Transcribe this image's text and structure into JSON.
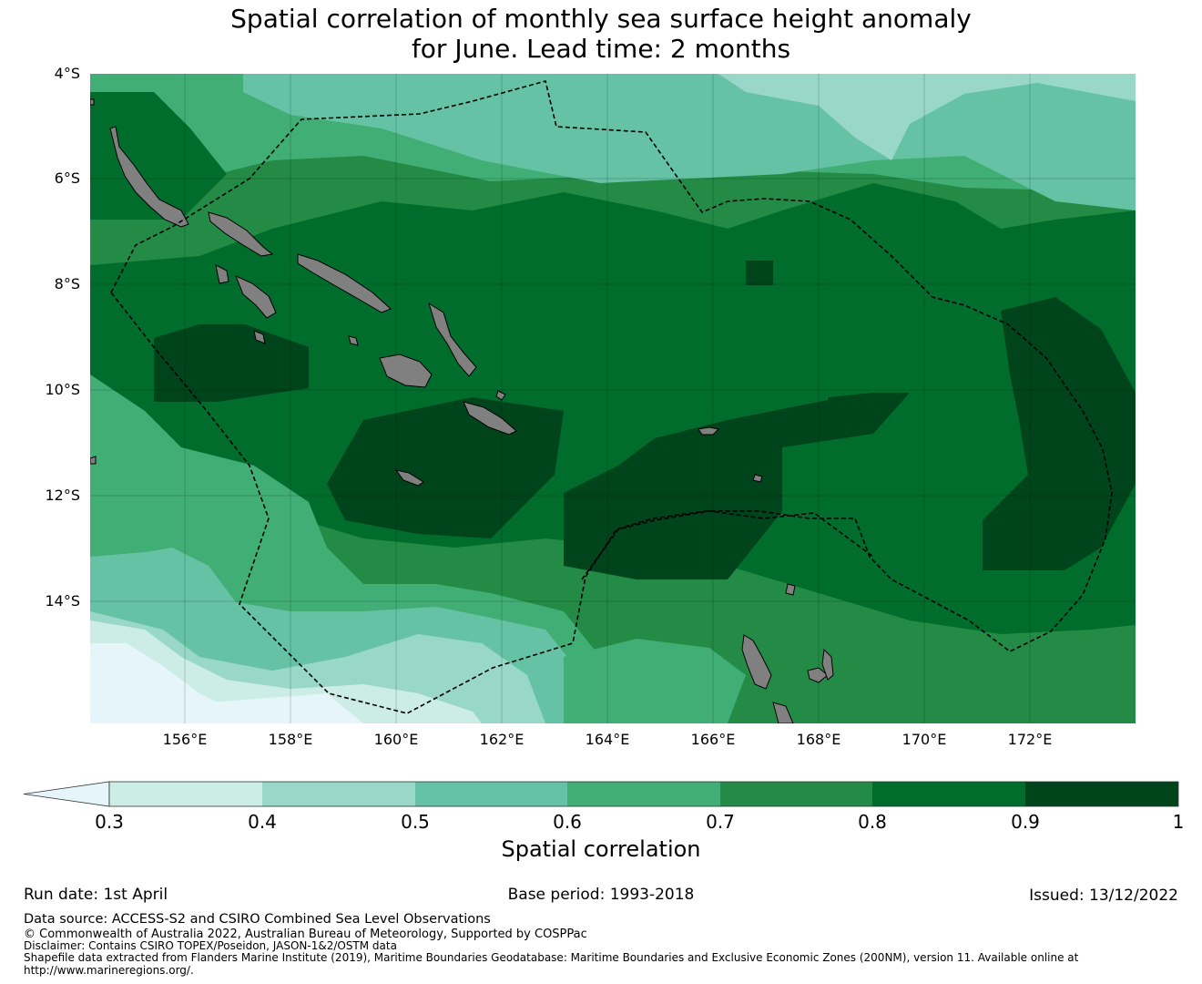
{
  "title_line1": "Spatial correlation of monthly sea surface height anomaly",
  "title_line2": "for June. Lead time: 2 months",
  "map": {
    "lat_labels": [
      "4°S",
      "6°S",
      "8°S",
      "10°S",
      "12°S",
      "14°S"
    ],
    "lon_labels": [
      "156°E",
      "158°E",
      "160°E",
      "162°E",
      "164°E",
      "166°E",
      "168°E",
      "170°E",
      "172°E"
    ],
    "lat_range": [
      -4,
      -16.3
    ],
    "lon_range": [
      154.2,
      174.0
    ],
    "land_color": "#808080",
    "boundary_style": "dashed"
  },
  "colorbar": {
    "tick_labels": [
      "0.3",
      "0.4",
      "0.5",
      "0.6",
      "0.7",
      "0.8",
      "0.9",
      "1"
    ],
    "colors": [
      "#e5f5f9",
      "#ccece6",
      "#99d8c9",
      "#66c2a4",
      "#41ae76",
      "#238b45",
      "#006d2c",
      "#00441b"
    ],
    "label": "Spatial correlation"
  },
  "footer": {
    "run_date": "Run date: 1st April",
    "base_period": "Base period: 1993-2018",
    "issued": "Issued: 13/12/2022",
    "data_source": "Data source: ACCESS-S2 and CSIRO Combined Sea Level Observations",
    "copyright": "© Commonwealth of Australia 2022, Australian Bureau of Meteorology, Supported by COSPPac",
    "disclaimer": "Disclaimer: Contains CSIRO TOPEX/Poseidon, JASON-1&2/OSTM data",
    "shapefile_line1": "Shapefile data extracted from Flanders Marine Institute (2019), Maritime Boundaries Geodatabase: Maritime Boundaries and Exclusive Economic Zones (200NM), version 11. Available online at",
    "shapefile_line2": "http://www.marineregions.org/."
  }
}
